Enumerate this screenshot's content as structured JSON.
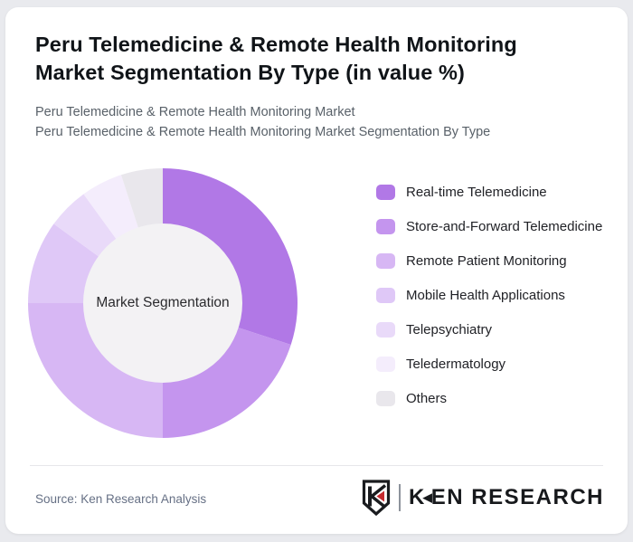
{
  "theme": {
    "page_bg": "#e9eaee",
    "card_bg": "#ffffff",
    "accent_red": "#c52a2f",
    "hole_color": "#f3f2f4"
  },
  "header": {
    "title": "Peru Telemedicine & Remote Health Monitoring Market Segmentation By Type (in value %)",
    "subtitle_line1": "Peru Telemedicine & Remote Health Monitoring Market",
    "subtitle_line2": "Peru Telemedicine & Remote Health Monitoring Market Segmentation By Type"
  },
  "chart_data": {
    "type": "pie",
    "donut": true,
    "title": "Peru Telemedicine & Remote Health Monitoring Market Segmentation By Type (in value %)",
    "center_label": "Market Segmentation",
    "legend_position": "right",
    "start_angle_deg": 0,
    "values_estimated_from_arcs": true,
    "labels": [
      "Real-time Telemedicine",
      "Store-and-Forward Telemedicine",
      "Remote Patient Monitoring",
      "Mobile Health Applications",
      "Telepsychiatry",
      "Teledermatology",
      "Others"
    ],
    "values": [
      30,
      20,
      25,
      10,
      5,
      5,
      5
    ],
    "colors": [
      "#b178e6",
      "#c495ee",
      "#d7b7f4",
      "#dfc8f7",
      "#e9daf9",
      "#f4edfc",
      "#e9e7ec"
    ]
  },
  "footer": {
    "source": "Source: Ken Research Analysis",
    "logo": {
      "brand_k": "K",
      "brand_accent_glyph": "◀",
      "brand_rest": "EN RESEARCH"
    }
  }
}
